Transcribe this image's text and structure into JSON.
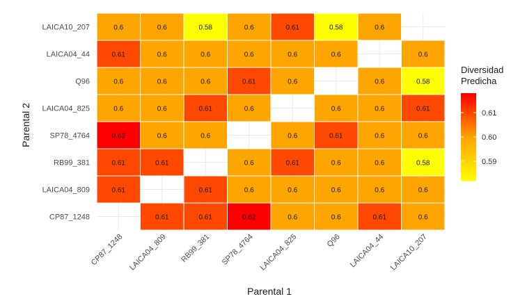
{
  "chart_data": {
    "type": "heatmap",
    "xlabel": "Parental 1",
    "ylabel": "Parental 2",
    "x_categories": [
      "CP87_1248",
      "LAICA04_809",
      "RB99_381",
      "SP78_4764",
      "LAICA04_825",
      "Q96",
      "LAICA04_44",
      "LAICA10_207"
    ],
    "y_categories": [
      "LAICA10_207",
      "LAICA04_44",
      "Q96",
      "LAICA04_825",
      "SP78_4764",
      "RB99_381",
      "LAICA04_809",
      "CP87_1248"
    ],
    "values": [
      [
        0.6,
        0.6,
        0.58,
        0.6,
        0.61,
        0.58,
        0.6,
        null
      ],
      [
        0.61,
        0.6,
        0.6,
        0.6,
        0.6,
        0.6,
        null,
        0.6
      ],
      [
        0.6,
        0.6,
        0.6,
        0.61,
        0.6,
        null,
        0.6,
        0.58
      ],
      [
        0.6,
        0.6,
        0.61,
        0.6,
        null,
        0.6,
        0.6,
        0.61
      ],
      [
        0.62,
        0.6,
        0.6,
        null,
        0.6,
        0.61,
        0.6,
        0.6
      ],
      [
        0.61,
        0.61,
        null,
        0.6,
        0.61,
        0.6,
        0.6,
        0.58
      ],
      [
        0.61,
        null,
        0.61,
        0.6,
        0.6,
        0.6,
        0.6,
        0.6
      ],
      [
        null,
        0.61,
        0.61,
        0.62,
        0.6,
        0.6,
        0.61,
        0.6
      ]
    ],
    "cell_labels": [
      [
        "0.6",
        "0.6",
        "0.58",
        "0.6",
        "0.61",
        "0.58",
        "0.6",
        ""
      ],
      [
        "0.61",
        "0.6",
        "0.6",
        "0.6",
        "0.6",
        "0.6",
        "",
        "0.6"
      ],
      [
        "0.6",
        "0.6",
        "0.6",
        "0.61",
        "0.6",
        "",
        "0.6",
        "0.58"
      ],
      [
        "0.6",
        "0.6",
        "0.61",
        "0.6",
        "",
        "0.6",
        "0.6",
        "0.61"
      ],
      [
        "0.62",
        "0.6",
        "0.6",
        "",
        "0.6",
        "0.61",
        "0.6",
        "0.6"
      ],
      [
        "0.61",
        "0.61",
        "",
        "0.6",
        "0.61",
        "0.6",
        "0.6",
        "0.58"
      ],
      [
        "0.61",
        "",
        "0.61",
        "0.6",
        "0.6",
        "0.6",
        "0.6",
        "0.6"
      ],
      [
        "",
        "0.61",
        "0.61",
        "0.62",
        "0.6",
        "0.6",
        "0.61",
        "0.6"
      ]
    ],
    "legend": {
      "title_lines": [
        "Diversidad",
        "Predicha"
      ],
      "ticks": [
        "0.61",
        "0.60",
        "0.59"
      ],
      "tick_values": [
        0.61,
        0.6,
        0.59
      ],
      "range": [
        0.582,
        0.618
      ],
      "colors": [
        "#ffff00",
        "#ffa500",
        "#ff0000"
      ],
      "placement": "right"
    },
    "grid": true
  }
}
